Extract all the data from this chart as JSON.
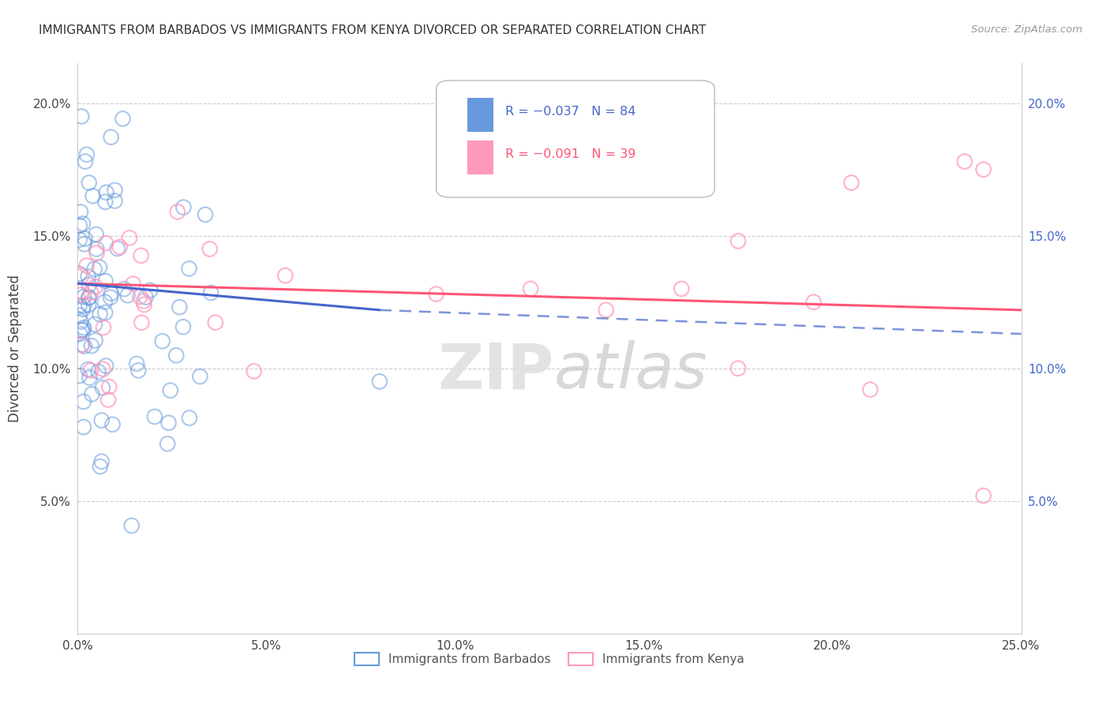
{
  "title": "IMMIGRANTS FROM BARBADOS VS IMMIGRANTS FROM KENYA DIVORCED OR SEPARATED CORRELATION CHART",
  "source": "Source: ZipAtlas.com",
  "ylabel": "Divorced or Separated",
  "xlim": [
    0.0,
    0.25
  ],
  "ylim": [
    0.0,
    0.215
  ],
  "xticks": [
    0.0,
    0.05,
    0.1,
    0.15,
    0.2,
    0.25
  ],
  "yticks": [
    0.05,
    0.1,
    0.15,
    0.2
  ],
  "xticklabels": [
    "0.0%",
    "5.0%",
    "10.0%",
    "15.0%",
    "20.0%",
    "25.0%"
  ],
  "yticklabels": [
    "5.0%",
    "10.0%",
    "15.0%",
    "20.0%"
  ],
  "barbados_color": "#6699DD",
  "kenya_color": "#FF99BB",
  "barbados_line_color": "#4466CC",
  "kenya_line_color": "#FF5577",
  "background_color": "#FFFFFF",
  "grid_color": "#CCCCCC",
  "legend_r1": "R = −0.037",
  "legend_n1": "N = 84",
  "legend_r2": "R = −0.091",
  "legend_n2": "N = 39",
  "legend_color1": "#4466CC",
  "legend_color2": "#FF5577",
  "watermark_zip": "ZIP",
  "watermark_atlas": "atlas",
  "barbados_seed": 42,
  "kenya_seed": 99,
  "scatter_size": 180,
  "scatter_alpha": 0.55,
  "trend_b_x0": 0.0,
  "trend_b_y0": 0.132,
  "trend_b_x1": 0.08,
  "trend_b_y1": 0.122,
  "trend_k_x0": 0.0,
  "trend_k_y0": 0.132,
  "trend_k_x1": 0.25,
  "trend_k_y1": 0.122,
  "trend_b_dash_x0": 0.08,
  "trend_b_dash_y0": 0.122,
  "trend_b_dash_x1": 0.25,
  "trend_b_dash_y1": 0.113
}
